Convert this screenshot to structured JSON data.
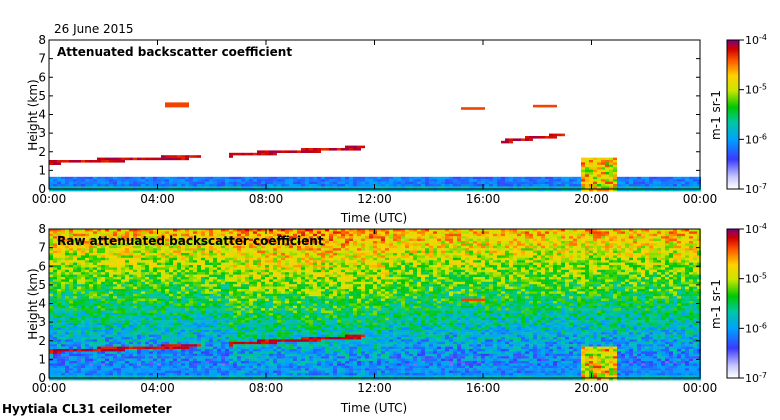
{
  "header": {
    "date": "26 June 2015"
  },
  "footer": {
    "site_label": "Hyytiala CL31 ceilometer"
  },
  "chart_data": [
    {
      "type": "heatmap",
      "title": "Attenuated backscatter coefficient",
      "xlabel": "Time (UTC)",
      "ylabel": "Height (km)",
      "xlim": [
        "00:00",
        "24:00"
      ],
      "ylim": [
        0,
        8
      ],
      "x_ticks": [
        "00:00",
        "04:00",
        "08:00",
        "12:00",
        "16:00",
        "20:00",
        "00:00"
      ],
      "y_ticks": [
        "0",
        "1",
        "2",
        "3",
        "4",
        "5",
        "6",
        "7",
        "8"
      ],
      "colorbar": {
        "scale": "log",
        "range": [
          1e-07,
          0.0001
        ],
        "tick_labels": [
          "10-7",
          "10-6",
          "10-5",
          "10-4"
        ],
        "label": "m-1 sr-1"
      },
      "features": [
        {
          "kind": "cloud-layer",
          "start_h": 0.0,
          "end_h": 5.5,
          "height_km": [
            1.5,
            1.8
          ]
        },
        {
          "kind": "cloud-layer",
          "start_h": 6.6,
          "end_h": 11.6,
          "height_km": [
            1.9,
            2.3
          ]
        },
        {
          "kind": "cloud-patch",
          "time_h": 4.6,
          "height_km": 4.6
        },
        {
          "kind": "cloud-patch",
          "time_h": 15.6,
          "height_km": 4.4
        },
        {
          "kind": "cloud-patch",
          "time_h": 18.2,
          "height_km": 4.5
        },
        {
          "kind": "cloud-layer",
          "start_h": 16.6,
          "end_h": 19.0,
          "height_km": [
            2.6,
            3.0
          ]
        },
        {
          "kind": "convective-plume",
          "start_h": 19.5,
          "end_h": 20.8,
          "height_km": [
            0,
            1.8
          ]
        },
        {
          "kind": "aerosol-boundary-layer",
          "start_h": 0,
          "end_h": 24,
          "height_km": [
            0,
            0.7
          ]
        }
      ]
    },
    {
      "type": "heatmap",
      "title": "Raw attenuated backscatter coefficient",
      "xlabel": "Time (UTC)",
      "ylabel": "Height (km)",
      "xlim": [
        "00:00",
        "24:00"
      ],
      "ylim": [
        0,
        8
      ],
      "x_ticks": [
        "00:00",
        "04:00",
        "08:00",
        "12:00",
        "16:00",
        "20:00",
        "00:00"
      ],
      "y_ticks": [
        "0",
        "1",
        "2",
        "3",
        "4",
        "5",
        "6",
        "7",
        "8"
      ],
      "colorbar": {
        "scale": "log",
        "range": [
          1e-07,
          0.0001
        ],
        "tick_labels": [
          "10-7",
          "10-6",
          "10-5",
          "10-4"
        ],
        "label": "m-1 sr-1"
      },
      "features": [
        {
          "kind": "noise-field",
          "start_h": 0,
          "end_h": 24,
          "height_km": [
            0,
            8
          ]
        },
        {
          "kind": "cloud-layer",
          "start_h": 0.0,
          "end_h": 5.5,
          "height_km": [
            1.5,
            1.8
          ]
        },
        {
          "kind": "cloud-layer",
          "start_h": 6.6,
          "end_h": 11.6,
          "height_km": [
            1.9,
            2.3
          ]
        },
        {
          "kind": "cloud-patch",
          "time_h": 15.6,
          "height_km": 4.3
        },
        {
          "kind": "convective-plume",
          "start_h": 19.5,
          "end_h": 20.8,
          "height_km": [
            0,
            1.8
          ]
        }
      ]
    }
  ]
}
